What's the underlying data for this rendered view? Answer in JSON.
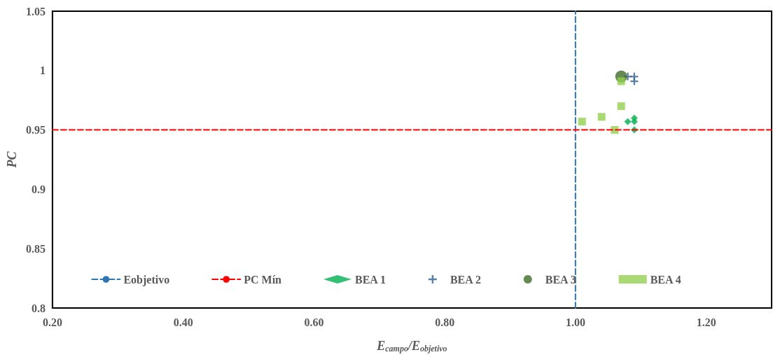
{
  "chart_data": {
    "type": "scatter",
    "xlabel": "E$_{campo}$/E$_{objetivo}$",
    "ylabel": "PC",
    "xlim": [
      0.2,
      1.3
    ],
    "xticks": [
      {
        "value": 0.2,
        "label": "0.20"
      },
      {
        "value": 0.4,
        "label": "0.40"
      },
      {
        "value": 0.6,
        "label": "0.60"
      },
      {
        "value": 0.8,
        "label": "0.80"
      },
      {
        "value": 1.0,
        "label": "1.00"
      },
      {
        "value": 1.2,
        "label": "1.20"
      }
    ],
    "ylim": [
      0.8,
      1.05
    ],
    "yticks": [
      0.8,
      0.85,
      0.9,
      0.95,
      1,
      1.05
    ],
    "grid": false,
    "legend": "bottom",
    "series": [
      {
        "name": "Eobjetivo",
        "type": "line",
        "color": "#2e75b6",
        "line_style": "dashed",
        "marker": "none",
        "x": [
          1,
          1
        ],
        "values": [
          0.8,
          1.05
        ]
      },
      {
        "name": "PC Mín",
        "type": "line",
        "color": "#ff0000",
        "line_style": "dashed",
        "marker": "none",
        "x": [
          0.2,
          1.3
        ],
        "values": [
          0.95,
          0.95
        ]
      },
      {
        "name": "BEA 1",
        "color": "#00b050",
        "marker": "diamond",
        "x": [
          1.08,
          1.09,
          1.09,
          1.09
        ],
        "values": [
          0.957,
          0.96,
          0.957,
          0.95
        ]
      },
      {
        "name": "BEA 2",
        "color": "#2e5f8f",
        "marker": "cross",
        "x": [
          1.08,
          1.09,
          1.09
        ],
        "values": [
          0.995,
          0.995,
          0.991
        ]
      },
      {
        "name": "BEA 3",
        "color": "#3d6b28",
        "marker": "circle",
        "x": [
          1.07
        ],
        "values": [
          0.995
        ]
      },
      {
        "name": "BEA 4",
        "color": "#92d050",
        "marker": "square",
        "x": [
          1.01,
          1.04,
          1.06,
          1.07,
          1.07
        ],
        "values": [
          0.957,
          0.961,
          0.95,
          0.97,
          0.991
        ]
      }
    ]
  }
}
